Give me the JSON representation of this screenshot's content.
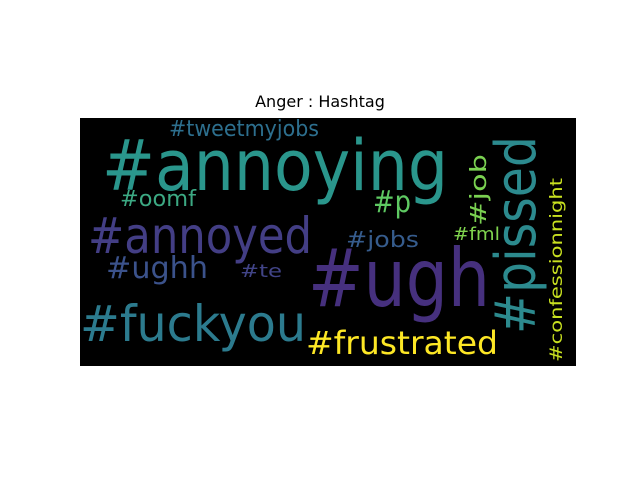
{
  "chart_data": {
    "type": "wordcloud",
    "title": "Anger : Hashtag",
    "background": "#000000",
    "words": [
      {
        "text": "#ugh",
        "color": "#46307e"
      },
      {
        "text": "#annoying",
        "color": "#2a968c"
      },
      {
        "text": "#pissed",
        "color": "#2c8a8e"
      },
      {
        "text": "#annoyed",
        "color": "#433e85"
      },
      {
        "text": "#fuckyou",
        "color": "#2c7b8e"
      },
      {
        "text": "#frustrated",
        "color": "#fde725"
      },
      {
        "text": "#tweetmyjobs",
        "color": "#2d6f8e"
      },
      {
        "text": "#ughh",
        "color": "#3b528b"
      },
      {
        "text": "#oomf",
        "color": "#3ca983"
      },
      {
        "text": "#p",
        "color": "#5ec962"
      },
      {
        "text": "#job",
        "color": "#7ad151"
      },
      {
        "text": "#jobs",
        "color": "#365c8d"
      },
      {
        "text": "#fml",
        "color": "#7fd34e"
      },
      {
        "text": "#te",
        "color": "#414487"
      },
      {
        "text": "#confessionnight",
        "color": "#c8e020"
      }
    ]
  }
}
